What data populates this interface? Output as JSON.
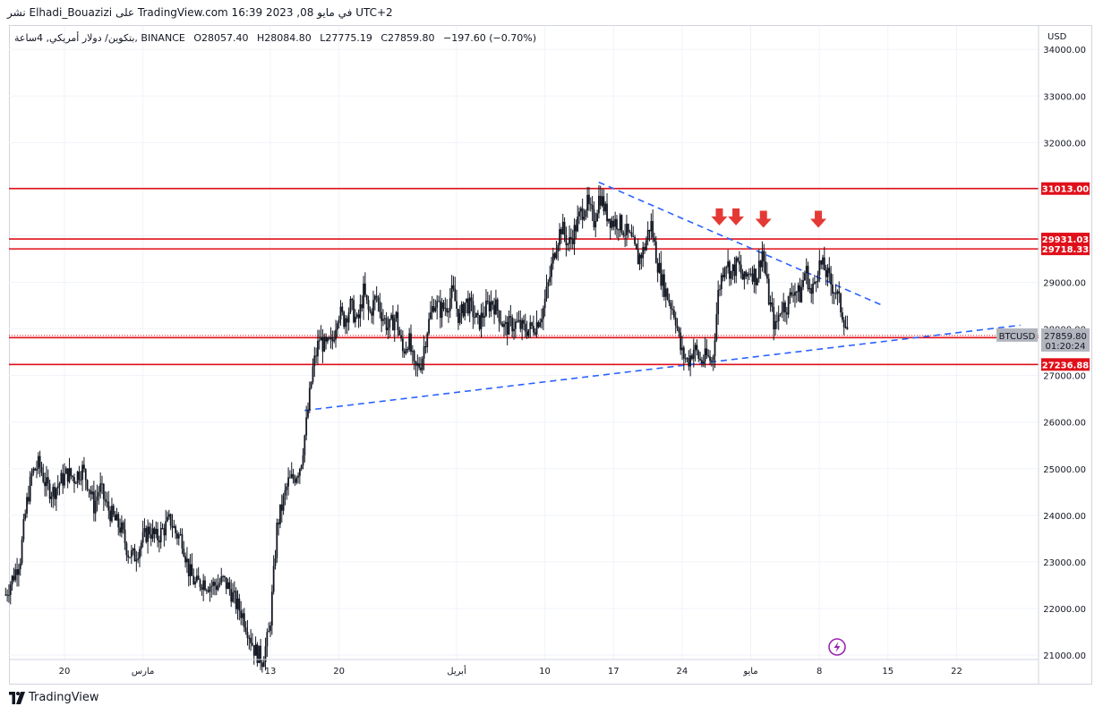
{
  "header": {
    "text": "نشر Elhadi_Bouazizi على TradingView.com 16:39 2023 ,08 في مايو UTC+2"
  },
  "symbol_line": {
    "name": "بتكوين/ دولار أمريكي, 4ساعة, BINANCE",
    "open": "O28057.40",
    "high": "H28084.80",
    "low": "L27775.19",
    "close": "C27859.80",
    "change": "−197.60 (−0.70%)"
  },
  "footer": {
    "brand": "TradingView"
  },
  "colors": {
    "level_line": "#e0101a",
    "trendline": "#2962ff",
    "candle": "#131722",
    "arrow": "#e53935",
    "current_price_badge": "#b2b5be",
    "flash_icon": "#9c27b0"
  },
  "chart_data": {
    "type": "candlestick",
    "symbol": "BTCUSD",
    "exchange": "BINANCE",
    "timeframe": "4h",
    "currency_label": "USD",
    "y_ticks": [
      21000,
      22000,
      23000,
      24000,
      25000,
      26000,
      27000,
      28000,
      29000,
      30000,
      31000,
      32000,
      33000,
      34000
    ],
    "x_ticks": [
      {
        "label": "20",
        "day": 20
      },
      {
        "label": "مارس",
        "day": 28
      },
      {
        "label": "13",
        "day": 41
      },
      {
        "label": "20",
        "day": 48
      },
      {
        "label": "أبريل",
        "day": 60
      },
      {
        "label": "10",
        "day": 69
      },
      {
        "label": "17",
        "day": 76
      },
      {
        "label": "24",
        "day": 83
      },
      {
        "label": "مايو",
        "day": 90
      },
      {
        "label": "8",
        "day": 97
      },
      {
        "label": "15",
        "day": 104
      },
      {
        "label": "22",
        "day": 111
      }
    ],
    "horizontal_levels": [
      31013.0,
      29931.03,
      29718.33,
      27812.29,
      27236.88
    ],
    "current_price": {
      "label": "BTCUSD",
      "value": "27859.80",
      "countdown": "01:20:24",
      "price": 27859.8
    },
    "trendlines": [
      {
        "name": "descending-resistance",
        "from": [
          74.5,
          31150
        ],
        "to": [
          103.5,
          28500
        ]
      },
      {
        "name": "ascending-support",
        "from": [
          44.5,
          26250
        ],
        "to": [
          117.5,
          28080
        ]
      }
    ],
    "arrows": [
      {
        "day": 86.8,
        "price": 30280
      },
      {
        "day": 88.5,
        "price": 30280
      },
      {
        "day": 91.3,
        "price": 30230
      },
      {
        "day": 96.9,
        "price": 30230
      }
    ],
    "price_path": [
      [
        14.0,
        22300
      ],
      [
        14.8,
        22700
      ],
      [
        15.5,
        23100
      ],
      [
        16.1,
        24200
      ],
      [
        16.7,
        24900
      ],
      [
        17.4,
        25100
      ],
      [
        18.2,
        24600
      ],
      [
        18.8,
        24500
      ],
      [
        19.5,
        24700
      ],
      [
        20.3,
        24900
      ],
      [
        21.0,
        24800
      ],
      [
        21.8,
        25000
      ],
      [
        22.4,
        24700
      ],
      [
        23.0,
        24200
      ],
      [
        23.6,
        24600
      ],
      [
        24.3,
        24200
      ],
      [
        25.1,
        23900
      ],
      [
        25.8,
        23700
      ],
      [
        26.5,
        23200
      ],
      [
        27.1,
        23100
      ],
      [
        27.8,
        23400
      ],
      [
        28.6,
        23700
      ],
      [
        29.4,
        23500
      ],
      [
        30.1,
        23700
      ],
      [
        30.8,
        23900
      ],
      [
        31.4,
        23600
      ],
      [
        32.0,
        23500
      ],
      [
        32.7,
        22800
      ],
      [
        33.4,
        22500
      ],
      [
        34.1,
        22600
      ],
      [
        34.8,
        22500
      ],
      [
        35.5,
        22500
      ],
      [
        36.2,
        22600
      ],
      [
        36.9,
        22400
      ],
      [
        37.5,
        22100
      ],
      [
        38.1,
        21900
      ],
      [
        38.8,
        21500
      ],
      [
        39.4,
        21100
      ],
      [
        40.2,
        20900
      ],
      [
        40.9,
        21500
      ],
      [
        41.3,
        22600
      ],
      [
        41.7,
        23800
      ],
      [
        42.2,
        24200
      ],
      [
        42.8,
        24700
      ],
      [
        43.4,
        24800
      ],
      [
        44.1,
        25100
      ],
      [
        44.7,
        26000
      ],
      [
        45.3,
        27100
      ],
      [
        46.0,
        27800
      ],
      [
        46.6,
        27600
      ],
      [
        47.3,
        27700
      ],
      [
        47.9,
        28400
      ],
      [
        48.5,
        28200
      ],
      [
        49.2,
        28500
      ],
      [
        49.9,
        28100
      ],
      [
        50.5,
        28800
      ],
      [
        51.1,
        28300
      ],
      [
        51.8,
        28700
      ],
      [
        52.4,
        28300
      ],
      [
        53.1,
        28000
      ],
      [
        53.8,
        28300
      ],
      [
        54.5,
        27500
      ],
      [
        55.1,
        27800
      ],
      [
        55.7,
        27100
      ],
      [
        56.4,
        27300
      ],
      [
        57.0,
        28000
      ],
      [
        57.7,
        28600
      ],
      [
        58.3,
        28400
      ],
      [
        59.0,
        28500
      ],
      [
        59.6,
        28800
      ],
      [
        60.3,
        28200
      ],
      [
        60.9,
        28600
      ],
      [
        61.6,
        28400
      ],
      [
        62.2,
        28100
      ],
      [
        62.9,
        28400
      ],
      [
        63.6,
        28600
      ],
      [
        64.2,
        28400
      ],
      [
        64.9,
        28000
      ],
      [
        65.5,
        28100
      ],
      [
        66.2,
        28100
      ],
      [
        66.8,
        28000
      ],
      [
        67.5,
        28000
      ],
      [
        68.1,
        28100
      ],
      [
        68.8,
        28400
      ],
      [
        69.4,
        29000
      ],
      [
        70.1,
        29800
      ],
      [
        70.7,
        30200
      ],
      [
        71.4,
        29800
      ],
      [
        72.0,
        30100
      ],
      [
        72.7,
        30500
      ],
      [
        73.3,
        30700
      ],
      [
        74.0,
        30300
      ],
      [
        74.6,
        30900
      ],
      [
        75.2,
        30500
      ],
      [
        75.9,
        30300
      ],
      [
        76.5,
        30300
      ],
      [
        77.2,
        30100
      ],
      [
        77.8,
        29900
      ],
      [
        78.5,
        29500
      ],
      [
        79.1,
        29700
      ],
      [
        79.8,
        30300
      ],
      [
        80.4,
        29500
      ],
      [
        81.0,
        29000
      ],
      [
        81.7,
        28600
      ],
      [
        82.3,
        28300
      ],
      [
        82.9,
        27500
      ],
      [
        83.6,
        27300
      ],
      [
        84.2,
        27600
      ],
      [
        84.9,
        27300
      ],
      [
        85.5,
        27400
      ],
      [
        86.1,
        27300
      ],
      [
        86.7,
        28800
      ],
      [
        87.4,
        29500
      ],
      [
        88.0,
        29200
      ],
      [
        88.7,
        29400
      ],
      [
        89.3,
        29000
      ],
      [
        89.9,
        29300
      ],
      [
        90.6,
        29100
      ],
      [
        91.2,
        29700
      ],
      [
        91.8,
        28700
      ],
      [
        92.5,
        28000
      ],
      [
        93.1,
        28500
      ],
      [
        93.7,
        28500
      ],
      [
        94.4,
        28900
      ],
      [
        95.0,
        28700
      ],
      [
        95.6,
        29300
      ],
      [
        96.2,
        28700
      ],
      [
        96.9,
        29400
      ],
      [
        97.5,
        29300
      ],
      [
        98.1,
        29000
      ],
      [
        98.7,
        28800
      ],
      [
        99.4,
        28300
      ],
      [
        100.0,
        27860
      ]
    ]
  }
}
